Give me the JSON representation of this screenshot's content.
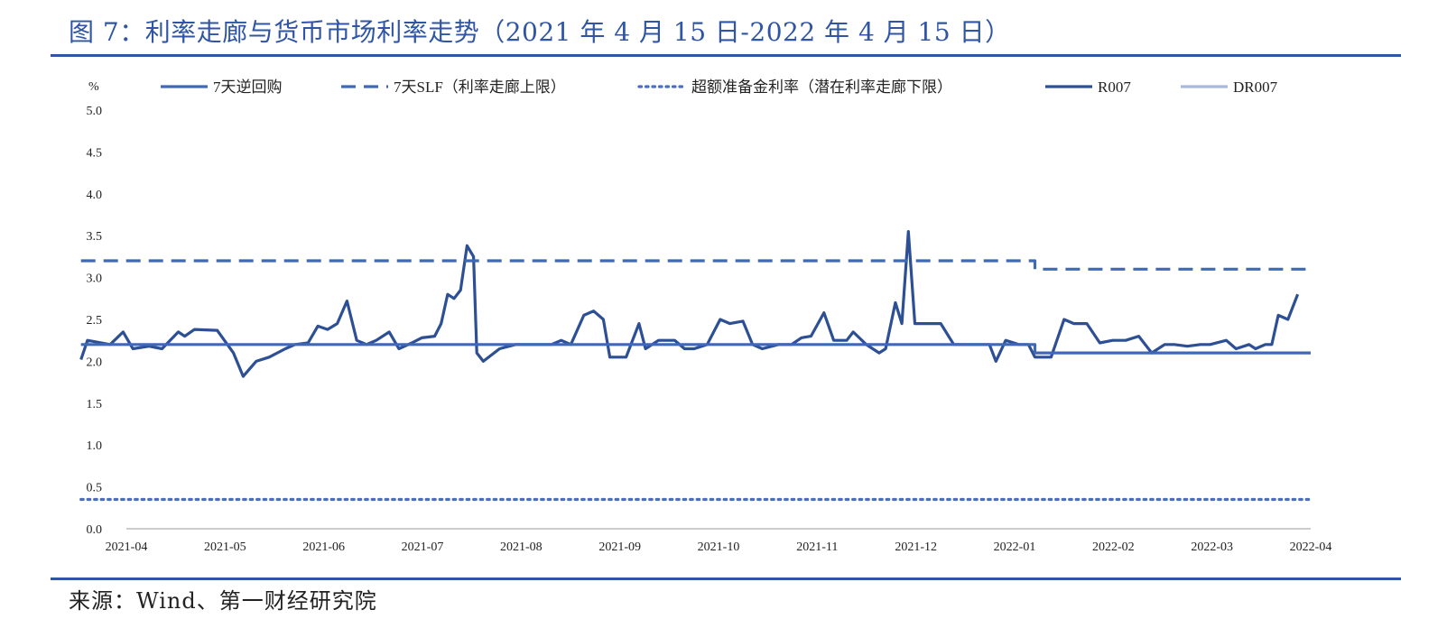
{
  "header": {
    "title": "图 7：利率走廊与货币市场利率走势（2021 年 4 月 15 日-2022 年 4 月 15 日）"
  },
  "footer": {
    "source": "来源：Wind、第一财经研究院"
  },
  "colors": {
    "accent": "#2F55A4",
    "reverse_repo": "#3F68B5",
    "slf": "#3F68B5",
    "ioer": "#4A6FC0",
    "r007": "#2D4F94",
    "dr007": "#A9B9DD"
  },
  "chart_data": {
    "type": "line",
    "title": "",
    "ylabel": "%",
    "ylim": [
      0,
      5
    ],
    "yticks": [
      "0.0",
      "0.5",
      "1.0",
      "1.5",
      "2.0",
      "2.5",
      "3.0",
      "3.5",
      "4.0",
      "4.5",
      "5.0"
    ],
    "xticks": [
      "2021-04",
      "2021-05",
      "2021-06",
      "2021-07",
      "2021-08",
      "2021-09",
      "2021-10",
      "2021-11",
      "2021-12",
      "2022-01",
      "2022-02",
      "2022-03",
      "2022-04"
    ],
    "x_start": "2021-04-15",
    "x_end": "2022-04-15",
    "grid": false,
    "legend_position": "top",
    "series": [
      {
        "name": "7天逆回购",
        "style": "solid",
        "points": [
          [
            "2021-04-01",
            2.2
          ],
          [
            "2022-01-20",
            2.2
          ],
          [
            "2022-01-20",
            2.1
          ],
          [
            "2022-04-15",
            2.1
          ]
        ]
      },
      {
        "name": "7天SLF（利率走廊上限）",
        "style": "dashed",
        "points": [
          [
            "2021-04-01",
            3.2
          ],
          [
            "2022-01-20",
            3.2
          ],
          [
            "2022-01-20",
            3.1
          ],
          [
            "2022-04-15",
            3.1
          ]
        ]
      },
      {
        "name": "超额准备金利率（潜在利率走廊下限）",
        "style": "dotted",
        "points": [
          [
            "2021-04-01",
            0.35
          ],
          [
            "2022-04-15",
            0.35
          ]
        ]
      },
      {
        "name": "R007",
        "style": "solid",
        "points": [
          [
            "2021-04-01",
            2.02
          ],
          [
            "2021-04-03",
            2.25
          ],
          [
            "2021-04-10",
            2.2
          ],
          [
            "2021-04-14",
            2.35
          ],
          [
            "2021-04-17",
            2.15
          ],
          [
            "2021-04-22",
            2.18
          ],
          [
            "2021-04-26",
            2.15
          ],
          [
            "2021-05-01",
            2.35
          ],
          [
            "2021-05-03",
            2.3
          ],
          [
            "2021-05-06",
            2.38
          ],
          [
            "2021-05-13",
            2.37
          ],
          [
            "2021-05-18",
            2.1
          ],
          [
            "2021-05-21",
            1.82
          ],
          [
            "2021-05-25",
            2.0
          ],
          [
            "2021-05-29",
            2.05
          ],
          [
            "2021-06-03",
            2.15
          ],
          [
            "2021-06-06",
            2.2
          ],
          [
            "2021-06-10",
            2.22
          ],
          [
            "2021-06-13",
            2.42
          ],
          [
            "2021-06-16",
            2.38
          ],
          [
            "2021-06-19",
            2.45
          ],
          [
            "2021-06-22",
            2.72
          ],
          [
            "2021-06-25",
            2.25
          ],
          [
            "2021-06-28",
            2.2
          ],
          [
            "2021-07-01",
            2.25
          ],
          [
            "2021-07-05",
            2.35
          ],
          [
            "2021-07-08",
            2.15
          ],
          [
            "2021-07-12",
            2.22
          ],
          [
            "2021-07-15",
            2.28
          ],
          [
            "2021-07-19",
            2.3
          ],
          [
            "2021-07-21",
            2.45
          ],
          [
            "2021-07-23",
            2.8
          ],
          [
            "2021-07-25",
            2.75
          ],
          [
            "2021-07-27",
            2.85
          ],
          [
            "2021-07-29",
            3.38
          ],
          [
            "2021-07-31",
            3.25
          ],
          [
            "2021-08-01",
            2.1
          ],
          [
            "2021-08-03",
            2.0
          ],
          [
            "2021-08-08",
            2.15
          ],
          [
            "2021-08-13",
            2.2
          ],
          [
            "2021-08-18",
            2.2
          ],
          [
            "2021-08-24",
            2.2
          ],
          [
            "2021-08-27",
            2.25
          ],
          [
            "2021-08-30",
            2.2
          ],
          [
            "2021-09-03",
            2.55
          ],
          [
            "2021-09-06",
            2.6
          ],
          [
            "2021-09-09",
            2.5
          ],
          [
            "2021-09-11",
            2.05
          ],
          [
            "2021-09-16",
            2.05
          ],
          [
            "2021-09-20",
            2.45
          ],
          [
            "2021-09-22",
            2.15
          ],
          [
            "2021-09-26",
            2.25
          ],
          [
            "2021-10-01",
            2.25
          ],
          [
            "2021-10-04",
            2.15
          ],
          [
            "2021-10-07",
            2.15
          ],
          [
            "2021-10-11",
            2.2
          ],
          [
            "2021-10-15",
            2.5
          ],
          [
            "2021-10-18",
            2.45
          ],
          [
            "2021-10-22",
            2.48
          ],
          [
            "2021-10-25",
            2.2
          ],
          [
            "2021-10-28",
            2.15
          ],
          [
            "2021-11-02",
            2.2
          ],
          [
            "2021-11-06",
            2.2
          ],
          [
            "2021-11-09",
            2.28
          ],
          [
            "2021-11-12",
            2.3
          ],
          [
            "2021-11-16",
            2.58
          ],
          [
            "2021-11-19",
            2.25
          ],
          [
            "2021-11-23",
            2.25
          ],
          [
            "2021-11-25",
            2.35
          ],
          [
            "2021-11-29",
            2.2
          ],
          [
            "2021-12-03",
            2.1
          ],
          [
            "2021-12-05",
            2.15
          ],
          [
            "2021-12-08",
            2.7
          ],
          [
            "2021-12-10",
            2.45
          ],
          [
            "2021-12-12",
            3.55
          ],
          [
            "2021-12-14",
            2.45
          ],
          [
            "2021-12-18",
            2.45
          ],
          [
            "2021-12-22",
            2.45
          ],
          [
            "2021-12-26",
            2.2
          ],
          [
            "2021-12-29",
            2.2
          ],
          [
            "2022-01-02",
            2.2
          ],
          [
            "2022-01-06",
            2.2
          ],
          [
            "2022-01-08",
            2.0
          ],
          [
            "2022-01-11",
            2.25
          ],
          [
            "2022-01-15",
            2.2
          ],
          [
            "2022-01-18",
            2.2
          ],
          [
            "2022-01-20",
            2.05
          ],
          [
            "2022-01-25",
            2.05
          ],
          [
            "2022-01-29",
            2.5
          ],
          [
            "2022-02-01",
            2.45
          ],
          [
            "2022-02-05",
            2.45
          ],
          [
            "2022-02-09",
            2.22
          ],
          [
            "2022-02-13",
            2.25
          ],
          [
            "2022-02-17",
            2.25
          ],
          [
            "2022-02-21",
            2.3
          ],
          [
            "2022-02-25",
            2.1
          ],
          [
            "2022-03-01",
            2.2
          ],
          [
            "2022-03-04",
            2.2
          ],
          [
            "2022-03-08",
            2.18
          ],
          [
            "2022-03-12",
            2.2
          ],
          [
            "2022-03-15",
            2.2
          ],
          [
            "2022-03-20",
            2.25
          ],
          [
            "2022-03-23",
            2.15
          ],
          [
            "2022-03-27",
            2.2
          ],
          [
            "2022-03-29",
            2.15
          ],
          [
            "2022-04-01",
            2.2
          ],
          [
            "2022-04-03",
            2.2
          ],
          [
            "2022-04-05",
            2.55
          ],
          [
            "2022-04-08",
            2.5
          ],
          [
            "2022-04-11",
            2.8
          ]
        ]
      },
      {
        "name": "DR007",
        "style": "solid",
        "points": []
      }
    ]
  }
}
